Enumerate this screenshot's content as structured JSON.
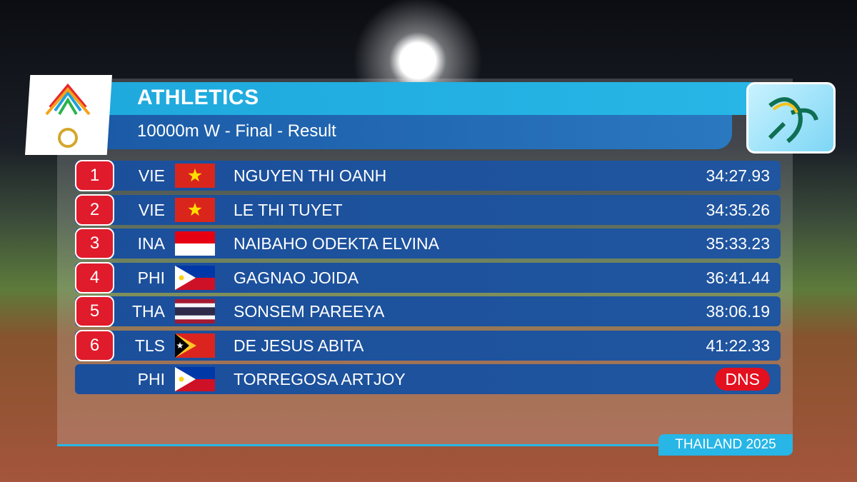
{
  "header": {
    "sport": "ATHLETICS",
    "event": "10000m W - Final - Result"
  },
  "rows": [
    {
      "rank": "1",
      "country": "VIE",
      "name": "NGUYEN THI OANH",
      "result": "34:27.93"
    },
    {
      "rank": "2",
      "country": "VIE",
      "name": "LE THI TUYET",
      "result": "34:35.26"
    },
    {
      "rank": "3",
      "country": "INA",
      "name": "NAIBAHO ODEKTA ELVINA",
      "result": "35:33.23"
    },
    {
      "rank": "4",
      "country": "PHI",
      "name": "GAGNAO JOIDA",
      "result": "36:41.44"
    },
    {
      "rank": "5",
      "country": "THA",
      "name": "SONSEM PAREEYA",
      "result": "38:06.19"
    },
    {
      "rank": "6",
      "country": "TLS",
      "name": "DE JESUS ABITA",
      "result": "41:22.33"
    },
    {
      "country": "PHI",
      "name": "TORREGOSA ARTJOY",
      "result": "DNS",
      "result_color": "#e3101f"
    }
  ],
  "footer": {
    "edition": "THAILAND 2025"
  }
}
